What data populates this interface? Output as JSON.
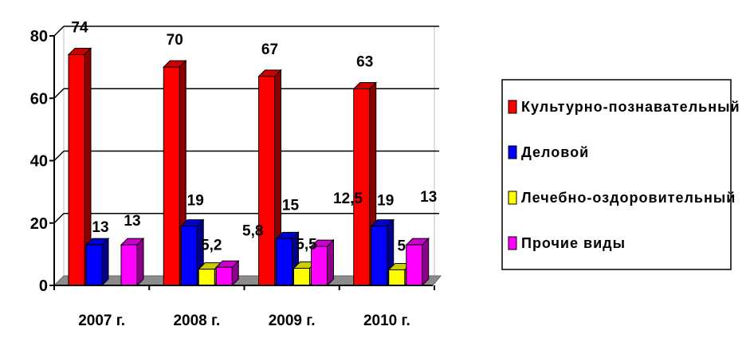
{
  "chart_data": {
    "type": "bar",
    "categories": [
      "2007 г.",
      "2008 г.",
      "2009 г.",
      "2010 г."
    ],
    "series": [
      {
        "name": "Культурно-познавательный",
        "color": "#ff0000",
        "values": [
          74,
          70,
          67,
          63
        ],
        "labels": [
          "74",
          "70",
          "67",
          "63"
        ]
      },
      {
        "name": "Деловой",
        "color": "#0000ff",
        "values": [
          13,
          19,
          15,
          19
        ],
        "labels": [
          "13",
          "19",
          "15",
          "19"
        ]
      },
      {
        "name": "Лечебно-оздоровительный",
        "color": "#ffff00",
        "values": [
          null,
          5.2,
          5.5,
          5
        ],
        "labels": [
          null,
          "5,2",
          "5,5",
          "5"
        ]
      },
      {
        "name": "Прочие виды",
        "color": "#ff00ff",
        "values": [
          13,
          5.8,
          12.5,
          13
        ],
        "labels": [
          "13",
          "5,8",
          "12,5",
          "13"
        ]
      }
    ],
    "yticks": [
      "0",
      "20",
      "40",
      "60",
      "80"
    ],
    "ylim": [
      0,
      80
    ],
    "grid": true,
    "legend_position": "right",
    "three_d": true
  }
}
